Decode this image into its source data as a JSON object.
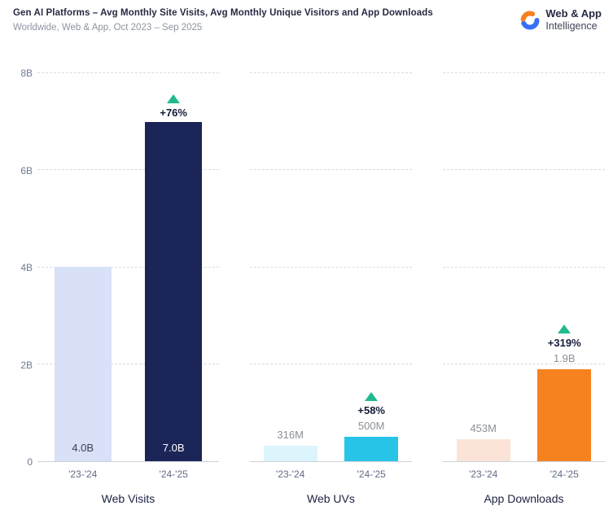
{
  "header": {
    "title": "Gen AI Platforms – Avg Monthly Site Visits, Avg Monthly Unique Visitors and App Downloads",
    "subtitle": "Worldwide, Web & App, Oct 2023 – Sep 2025",
    "brand": {
      "line1": "Web & App",
      "line2": "Intelligence"
    }
  },
  "colors": {
    "growth_green": "#21b98e",
    "brand_blue": "#3a6ef6",
    "brand_orange": "#f6821f",
    "title_navy": "#262a41",
    "axis_gray": "#6f7b95",
    "value_label_gray": "#8c9097",
    "gridline_gray": "#d9dbe0"
  },
  "chart_data": {
    "type": "bar",
    "title": "Gen AI Platforms – Avg Monthly Site Visits, Avg Monthly Unique Visitors and App Downloads",
    "subtitle": "Worldwide, Web & App, Oct 2023 – Sep 2025",
    "unit": "billions",
    "categories": [
      "'23-'24",
      "'24-'25"
    ],
    "ylim": [
      0,
      8
    ],
    "yticks": [
      {
        "label": "0",
        "value": 0
      },
      {
        "label": "2B",
        "value": 2
      },
      {
        "label": "4B",
        "value": 4
      },
      {
        "label": "6B",
        "value": 6
      },
      {
        "label": "8B",
        "value": 8
      }
    ],
    "grid": "dashed-horizontal",
    "panels": [
      {
        "title": "Web Visits",
        "bars": [
          {
            "category": "'23-'24",
            "value": 4.0,
            "label": "4.0B",
            "color": "#d9e1f8",
            "label_style": "inside-dark"
          },
          {
            "category": "'24-'25",
            "value": 7.0,
            "label": "7.0B",
            "color": "#1b2557",
            "label_style": "inside-light",
            "growth": "+76%"
          }
        ]
      },
      {
        "title": "Web UVs",
        "bars": [
          {
            "category": "'23-'24",
            "value": 0.316,
            "label": "316M",
            "color": "#dcf4fb",
            "label_style": "above"
          },
          {
            "category": "'24-'25",
            "value": 0.5,
            "label": "500M",
            "color": "#28c4e8",
            "label_style": "above",
            "growth": "+58%"
          }
        ]
      },
      {
        "title": "App Downloads",
        "bars": [
          {
            "category": "'23-'24",
            "value": 0.453,
            "label": "453M",
            "color": "#fbe4d7",
            "label_style": "above"
          },
          {
            "category": "'24-'25",
            "value": 1.9,
            "label": "1.9B",
            "color": "#f6821f",
            "label_style": "above",
            "growth": "+319%"
          }
        ]
      }
    ]
  }
}
